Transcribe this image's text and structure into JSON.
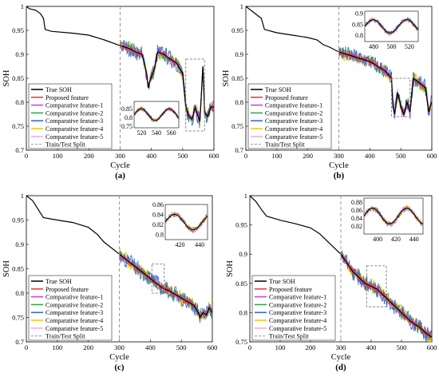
{
  "figure": {
    "legend_entries": [
      {
        "label": "True SOH",
        "color": "#000000",
        "dash": false
      },
      {
        "label": "Proposed feature",
        "color": "#e8333a",
        "dash": false
      },
      {
        "label": "Comparative feature-1",
        "color": "#c43cf0",
        "dash": false
      },
      {
        "label": "Comparative feature-2",
        "color": "#2ea043",
        "dash": false
      },
      {
        "label": "Comparative feature-3",
        "color": "#2f5fe6",
        "dash": false
      },
      {
        "label": "Comparative feature-4",
        "color": "#f2c500",
        "dash": false
      },
      {
        "label": "Comparative feature-5",
        "color": "#f7a8d0",
        "dash": false
      },
      {
        "label": "Train/Test Split",
        "color": "#999999",
        "dash": true
      }
    ]
  },
  "chart_data": [
    {
      "panel_label": "(a)",
      "type": "line",
      "xlabel": "Cycle",
      "ylabel": "SOH",
      "xlim": [
        0,
        600
      ],
      "ylim": [
        0.7,
        1.0
      ],
      "xticks": [
        0,
        100,
        200,
        300,
        400,
        500,
        600
      ],
      "yticks": [
        0.7,
        0.75,
        0.8,
        0.85,
        0.9,
        0.95,
        1.0
      ],
      "ytick_labels": [
        "0.7",
        "0.75",
        "0.8",
        "0.85",
        "0.9",
        "0.95",
        "1"
      ],
      "split": 300,
      "legend_position": "bottom-left",
      "true_soh": [
        [
          0,
          1.0
        ],
        [
          10,
          0.995
        ],
        [
          30,
          0.992
        ],
        [
          45,
          0.985
        ],
        [
          55,
          0.975
        ],
        [
          60,
          0.952
        ],
        [
          80,
          0.948
        ],
        [
          150,
          0.944
        ],
        [
          200,
          0.94
        ],
        [
          250,
          0.93
        ],
        [
          300,
          0.918
        ],
        [
          330,
          0.912
        ],
        [
          350,
          0.905
        ],
        [
          370,
          0.9
        ],
        [
          385,
          0.86
        ],
        [
          390,
          0.83
        ],
        [
          395,
          0.845
        ],
        [
          410,
          0.87
        ],
        [
          420,
          0.905
        ],
        [
          440,
          0.9
        ],
        [
          460,
          0.89
        ],
        [
          480,
          0.882
        ],
        [
          500,
          0.86
        ],
        [
          510,
          0.79
        ],
        [
          520,
          0.77
        ],
        [
          530,
          0.765
        ],
        [
          540,
          0.79
        ],
        [
          550,
          0.77
        ],
        [
          555,
          0.76
        ],
        [
          565,
          0.875
        ],
        [
          570,
          0.78
        ],
        [
          580,
          0.77
        ],
        [
          590,
          0.79
        ],
        [
          600,
          0.79
        ]
      ],
      "zoom_box": {
        "x": [
          510,
          570
        ],
        "y": [
          0.74,
          0.89
        ]
      },
      "inset": {
        "xlim": [
          510,
          570
        ],
        "ylim": [
          0.74,
          0.89
        ],
        "xticks": [
          520,
          540,
          560
        ],
        "yticks": [
          0.75,
          0.8,
          0.85
        ],
        "ytick_labels": [
          "0.75",
          "0.8",
          "0.85"
        ],
        "location": "bottom-right"
      }
    },
    {
      "panel_label": "(b)",
      "type": "line",
      "xlabel": "Cycle",
      "ylabel": "SOH",
      "xlim": [
        0,
        600
      ],
      "ylim": [
        0.7,
        1.0
      ],
      "xticks": [
        0,
        100,
        200,
        300,
        400,
        500,
        600
      ],
      "yticks": [
        0.7,
        0.75,
        0.8,
        0.85,
        0.9,
        0.95,
        1.0
      ],
      "ytick_labels": [
        "0.7",
        "0.75",
        "0.8",
        "0.85",
        "0.9",
        "0.95",
        "1"
      ],
      "split": 300,
      "legend_position": "bottom-left",
      "true_soh": [
        [
          0,
          1.0
        ],
        [
          20,
          0.99
        ],
        [
          50,
          0.975
        ],
        [
          60,
          0.952
        ],
        [
          100,
          0.945
        ],
        [
          150,
          0.94
        ],
        [
          200,
          0.935
        ],
        [
          230,
          0.93
        ],
        [
          250,
          0.92
        ],
        [
          270,
          0.915
        ],
        [
          300,
          0.905
        ],
        [
          350,
          0.895
        ],
        [
          400,
          0.885
        ],
        [
          450,
          0.865
        ],
        [
          470,
          0.85
        ],
        [
          475,
          0.79
        ],
        [
          480,
          0.775
        ],
        [
          490,
          0.82
        ],
        [
          500,
          0.79
        ],
        [
          510,
          0.775
        ],
        [
          520,
          0.8
        ],
        [
          530,
          0.78
        ],
        [
          540,
          0.85
        ],
        [
          560,
          0.84
        ],
        [
          580,
          0.83
        ],
        [
          590,
          0.78
        ],
        [
          600,
          0.8
        ]
      ],
      "zoom_box": {
        "x": [
          470,
          530
        ],
        "y": [
          0.77,
          0.85
        ]
      },
      "inset": {
        "xlim": [
          470,
          530
        ],
        "ylim": [
          0.77,
          0.91
        ],
        "xticks": [
          480,
          500,
          520
        ],
        "yticks": [
          0.8,
          0.85,
          0.9
        ],
        "ytick_labels": [
          "0.8",
          "0.85",
          "0.9"
        ],
        "location": "top-right"
      }
    },
    {
      "panel_label": "(c)",
      "type": "line",
      "xlabel": "Cycle",
      "ylabel": "SOH",
      "xlim": [
        0,
        600
      ],
      "ylim": [
        0.7,
        1.0
      ],
      "xticks": [
        0,
        100,
        200,
        300,
        400,
        500,
        600
      ],
      "yticks": [
        0.7,
        0.75,
        0.8,
        0.85,
        0.9,
        0.95,
        1.0
      ],
      "ytick_labels": [
        "0.7",
        "0.75",
        "0.8",
        "0.85",
        "0.9",
        "0.95",
        "1"
      ],
      "split": 300,
      "legend_position": "bottom-left",
      "true_soh": [
        [
          0,
          1.0
        ],
        [
          20,
          0.99
        ],
        [
          50,
          0.96
        ],
        [
          55,
          0.955
        ],
        [
          100,
          0.95
        ],
        [
          150,
          0.945
        ],
        [
          200,
          0.935
        ],
        [
          230,
          0.92
        ],
        [
          250,
          0.905
        ],
        [
          270,
          0.895
        ],
        [
          300,
          0.88
        ],
        [
          320,
          0.87
        ],
        [
          350,
          0.855
        ],
        [
          380,
          0.84
        ],
        [
          400,
          0.83
        ],
        [
          420,
          0.82
        ],
        [
          440,
          0.81
        ],
        [
          460,
          0.805
        ],
        [
          500,
          0.79
        ],
        [
          540,
          0.775
        ],
        [
          555,
          0.76
        ],
        [
          560,
          0.75
        ],
        [
          570,
          0.76
        ],
        [
          580,
          0.755
        ],
        [
          590,
          0.77
        ],
        [
          600,
          0.76
        ]
      ],
      "zoom_box": {
        "x": [
          405,
          445
        ],
        "y": [
          0.8,
          0.86
        ]
      },
      "inset": {
        "xlim": [
          405,
          448
        ],
        "ylim": [
          0.79,
          0.86
        ],
        "xticks": [
          420,
          440
        ],
        "yticks": [
          0.8,
          0.82,
          0.84,
          0.86
        ],
        "ytick_labels": [
          "0.8",
          "0.82",
          "0.84",
          "0.86"
        ],
        "location": "top-right"
      }
    },
    {
      "panel_label": "(d)",
      "type": "line",
      "xlabel": "Cycle",
      "ylabel": "SOH",
      "xlim": [
        0,
        600
      ],
      "ylim": [
        0.75,
        1.0
      ],
      "xticks": [
        0,
        100,
        200,
        300,
        400,
        500,
        600
      ],
      "yticks": [
        0.75,
        0.8,
        0.85,
        0.9,
        0.95,
        1.0
      ],
      "ytick_labels": [
        "0.75",
        "0.8",
        "0.85",
        "0.9",
        "0.95",
        "1"
      ],
      "split": 300,
      "legend_position": "bottom-left",
      "true_soh": [
        [
          0,
          1.0
        ],
        [
          20,
          0.99
        ],
        [
          40,
          0.975
        ],
        [
          55,
          0.965
        ],
        [
          100,
          0.958
        ],
        [
          150,
          0.952
        ],
        [
          200,
          0.945
        ],
        [
          230,
          0.935
        ],
        [
          250,
          0.925
        ],
        [
          280,
          0.91
        ],
        [
          300,
          0.9
        ],
        [
          320,
          0.885
        ],
        [
          340,
          0.87
        ],
        [
          360,
          0.86
        ],
        [
          380,
          0.85
        ],
        [
          400,
          0.845
        ],
        [
          420,
          0.84
        ],
        [
          450,
          0.825
        ],
        [
          480,
          0.81
        ],
        [
          500,
          0.8
        ],
        [
          530,
          0.785
        ],
        [
          560,
          0.775
        ],
        [
          580,
          0.765
        ],
        [
          600,
          0.758
        ]
      ],
      "zoom_box": {
        "x": [
          385,
          450
        ],
        "y": [
          0.81,
          0.88
        ]
      },
      "inset": {
        "xlim": [
          385,
          450
        ],
        "ylim": [
          0.8,
          0.89
        ],
        "xticks": [
          400,
          420,
          440
        ],
        "yticks": [
          0.82,
          0.84,
          0.86,
          0.88
        ],
        "ytick_labels": [
          "0.82",
          "0.84",
          "0.86",
          "0.88"
        ],
        "location": "top-right"
      }
    }
  ]
}
